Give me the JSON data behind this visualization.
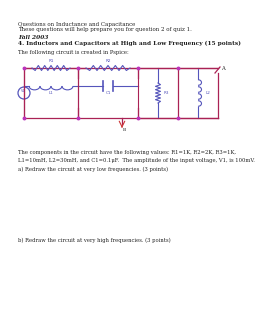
{
  "bg_color": "#ffffff",
  "title_line1": "Questions on Inductance and Capacitance",
  "title_line2": "These questions will help prepare you for question 2 of quiz 1.",
  "semester": "Fall 2003",
  "section_title": "4. Inductors and Capacitors at High and Low Frequency (15 points)",
  "intro_text": "The following circuit is created in Pspice:",
  "component_text": "The components in the circuit have the following values: R1=1K, R2=2K, R3=1K,\nL1=10mH, L2=30mH, and C1=0.1μF.  The amplitude of the input voltage, V1, is 100mV.",
  "part_a": "a) Redraw the circuit at very low frequencies. (3 points)",
  "part_b": "b) Redraw the circuit at very high frequencies. (3 points)",
  "text_color": "#222222",
  "circuit_wire_color": "#aa2255",
  "circuit_component_color": "#5555bb",
  "node_color": "#bb33bb",
  "ground_color": "#cc3333"
}
